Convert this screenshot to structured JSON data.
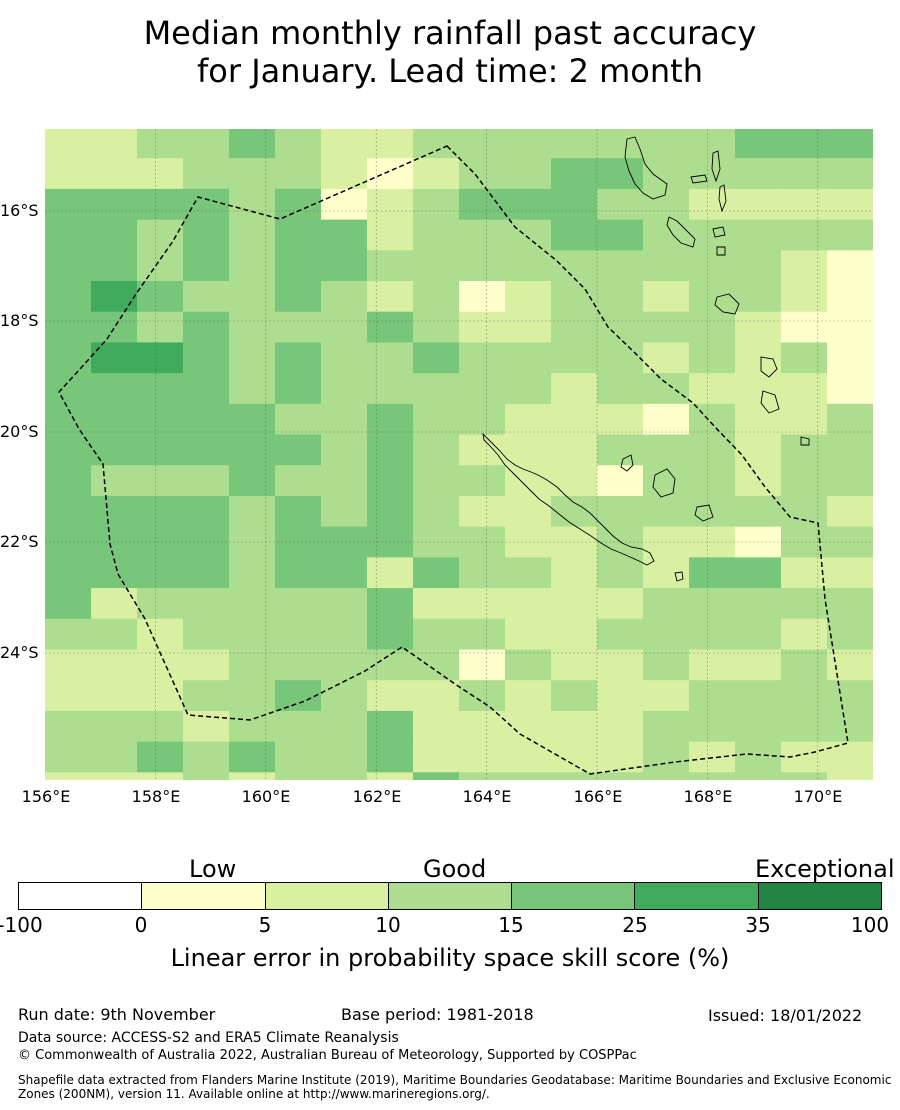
{
  "title_line1": "Median monthly rainfall past accuracy",
  "title_line2": "for January. Lead time: 2 month",
  "lat_labels": [
    "16°S",
    "18°S",
    "20°S",
    "22°S",
    "24°S"
  ],
  "lon_labels": [
    "156°E",
    "158°E",
    "160°E",
    "162°E",
    "164°E",
    "166°E",
    "168°E",
    "170°E"
  ],
  "colorbar": {
    "categories": [
      "Low",
      "Good",
      "Exceptional"
    ],
    "ticks": [
      "-100",
      "0",
      "5",
      "10",
      "15",
      "25",
      "35",
      "100"
    ],
    "colors": [
      "#ffffff",
      "#ffffcc",
      "#d9f0a3",
      "#addd8e",
      "#78c679",
      "#41ab5d",
      "#238443"
    ],
    "label": "Linear error in probability space skill score (%)"
  },
  "footer": {
    "run_date": "Run date: 9th November",
    "base_period": "Base period: 1981-2018",
    "issued": "Issued: 18/01/2022",
    "data_source": "Data source: ACCESS-S2 and ERA5 Climate Reanalysis",
    "copyright": "© Commonwealth of Australia 2022, Australian Bureau of Meteorology, Supported by COSPPac",
    "shapefile_line1": "Shapefile data extracted from Flanders Marine Institute (2019), Maritime Boundaries Geodatabase: Maritime Boundaries and Exclusive Economic",
    "shapefile_line2": "Zones (200NM), version 11. Available online at http://www.marineregions.org/."
  },
  "map": {
    "extent": {
      "lon": [
        156,
        171
      ],
      "lat": [
        -26.5,
        -14.7
      ]
    },
    "cell_levels": [
      "22334322333333344432",
      "22233321233443333322",
      "44443412344433222222",
      "44343442333443333332",
      "44343443333333332121",
      "45433432312332332111",
      "44343334322333321101",
      "45543433433332323100",
      "44443433333233222101",
      "44444334332221322322",
      "44444434322233323321",
      "43334334332213323311",
      "44443434322333333221",
      "44443444332232213322",
      "44443442433232442223",
      "42333334222223333323",
      "33233334332233332312",
      "22223333313223223222",
      "22233432232322333332",
      "33323334222223333332",
      "33434334222223232232",
      "22232332433333333222"
    ]
  }
}
